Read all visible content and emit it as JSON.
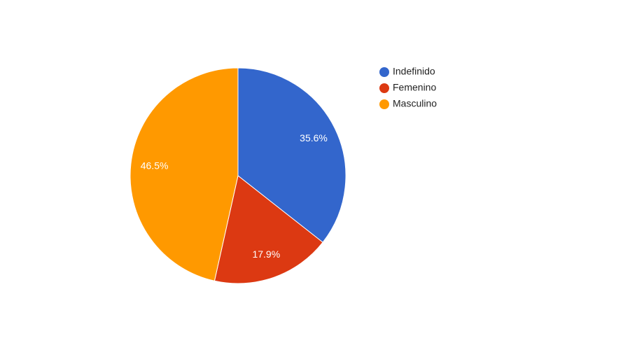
{
  "chart_data": {
    "type": "pie",
    "categories": [
      "Indefinido",
      "Femenino",
      "Masculino"
    ],
    "values": [
      35.6,
      17.9,
      46.5
    ],
    "value_labels": [
      "35.6%",
      "17.9%",
      "46.5%"
    ],
    "colors": [
      "#3366cc",
      "#dc3912",
      "#ff9900"
    ],
    "legend": {
      "position": "right",
      "entries": [
        "Indefinido",
        "Femenino",
        "Masculino"
      ]
    }
  }
}
